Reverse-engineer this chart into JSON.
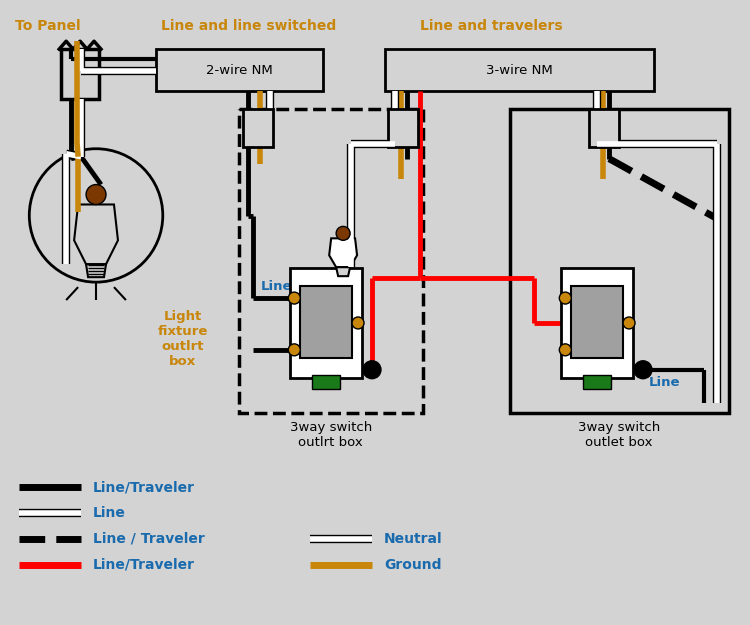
{
  "bg_color": "#d3d3d3",
  "title_color": "#c8860a",
  "text_color_blue": "#1a6bad",
  "wire_black": "#000000",
  "wire_white": "#ffffff",
  "wire_red": "#ff0000",
  "wire_ground": "#c8860a",
  "wire_brown": "#7b3800",
  "switch_paddle": "#a0a0a0",
  "switch_ground_screw": "#1a7a1a",
  "screw_color": "#c8860a",
  "label_to_panel": "To Panel",
  "label_line_line_switched": "Line and line switched",
  "label_line_travelers": "Line and travelers",
  "label_2wire": "2-wire NM",
  "label_3wire": "3-wire NM",
  "label_light_box": "Light\nfixture\noutlrt\nbox",
  "label_switch1_box": "3way switch\noutlrt box",
  "label_switch2_box": "3way switch\noutlet box",
  "label_line1": "Line",
  "label_line2": "Line",
  "legend_items": [
    {
      "label": "Line/Traveler",
      "color": "#000000",
      "style": "solid",
      "lw": 4
    },
    {
      "label": "Line",
      "color": "#000000",
      "style": "solid",
      "lw": 4,
      "white_under": true
    },
    {
      "label": "Line / Traveler",
      "color": "#000000",
      "style": "dashed",
      "lw": 4
    },
    {
      "label": "Line/Traveler",
      "color": "#ff0000",
      "style": "solid",
      "lw": 4
    },
    {
      "label": "Neutral",
      "color": "#ffffff",
      "style": "solid",
      "lw": 4
    },
    {
      "label": "Ground",
      "color": "#c8860a",
      "style": "solid",
      "lw": 4
    }
  ]
}
